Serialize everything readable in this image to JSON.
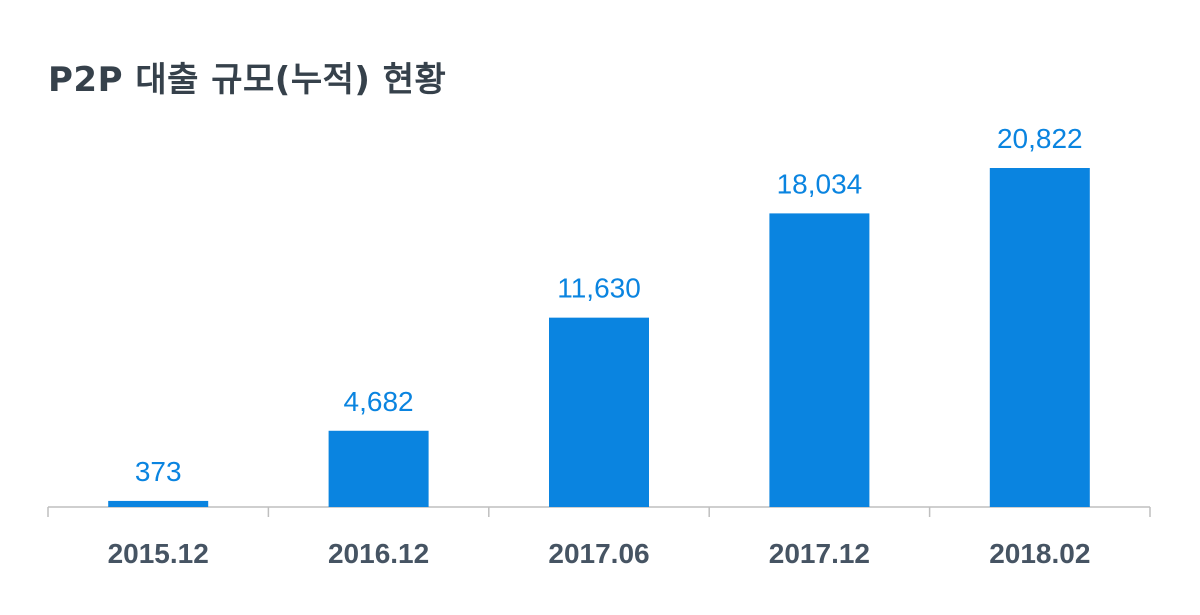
{
  "chart_data": {
    "type": "bar",
    "title": "P2P 대출 규모(누적) 현황",
    "categories": [
      "2015.12",
      "2016.12",
      "2017.06",
      "2017.12",
      "2018.02"
    ],
    "values": [
      373,
      4682,
      11630,
      18034,
      20822
    ],
    "value_labels": [
      "373",
      "4,682",
      "11,630",
      "18,034",
      "20,822"
    ],
    "ylim": [
      0,
      23000
    ],
    "grid": false,
    "legend": "none",
    "bar_color": "#0a84e0",
    "label_color": "#0a84e0",
    "axis_color": "#bfbfbf",
    "tick_label_color": "#465463",
    "title_color": "#36414b"
  }
}
